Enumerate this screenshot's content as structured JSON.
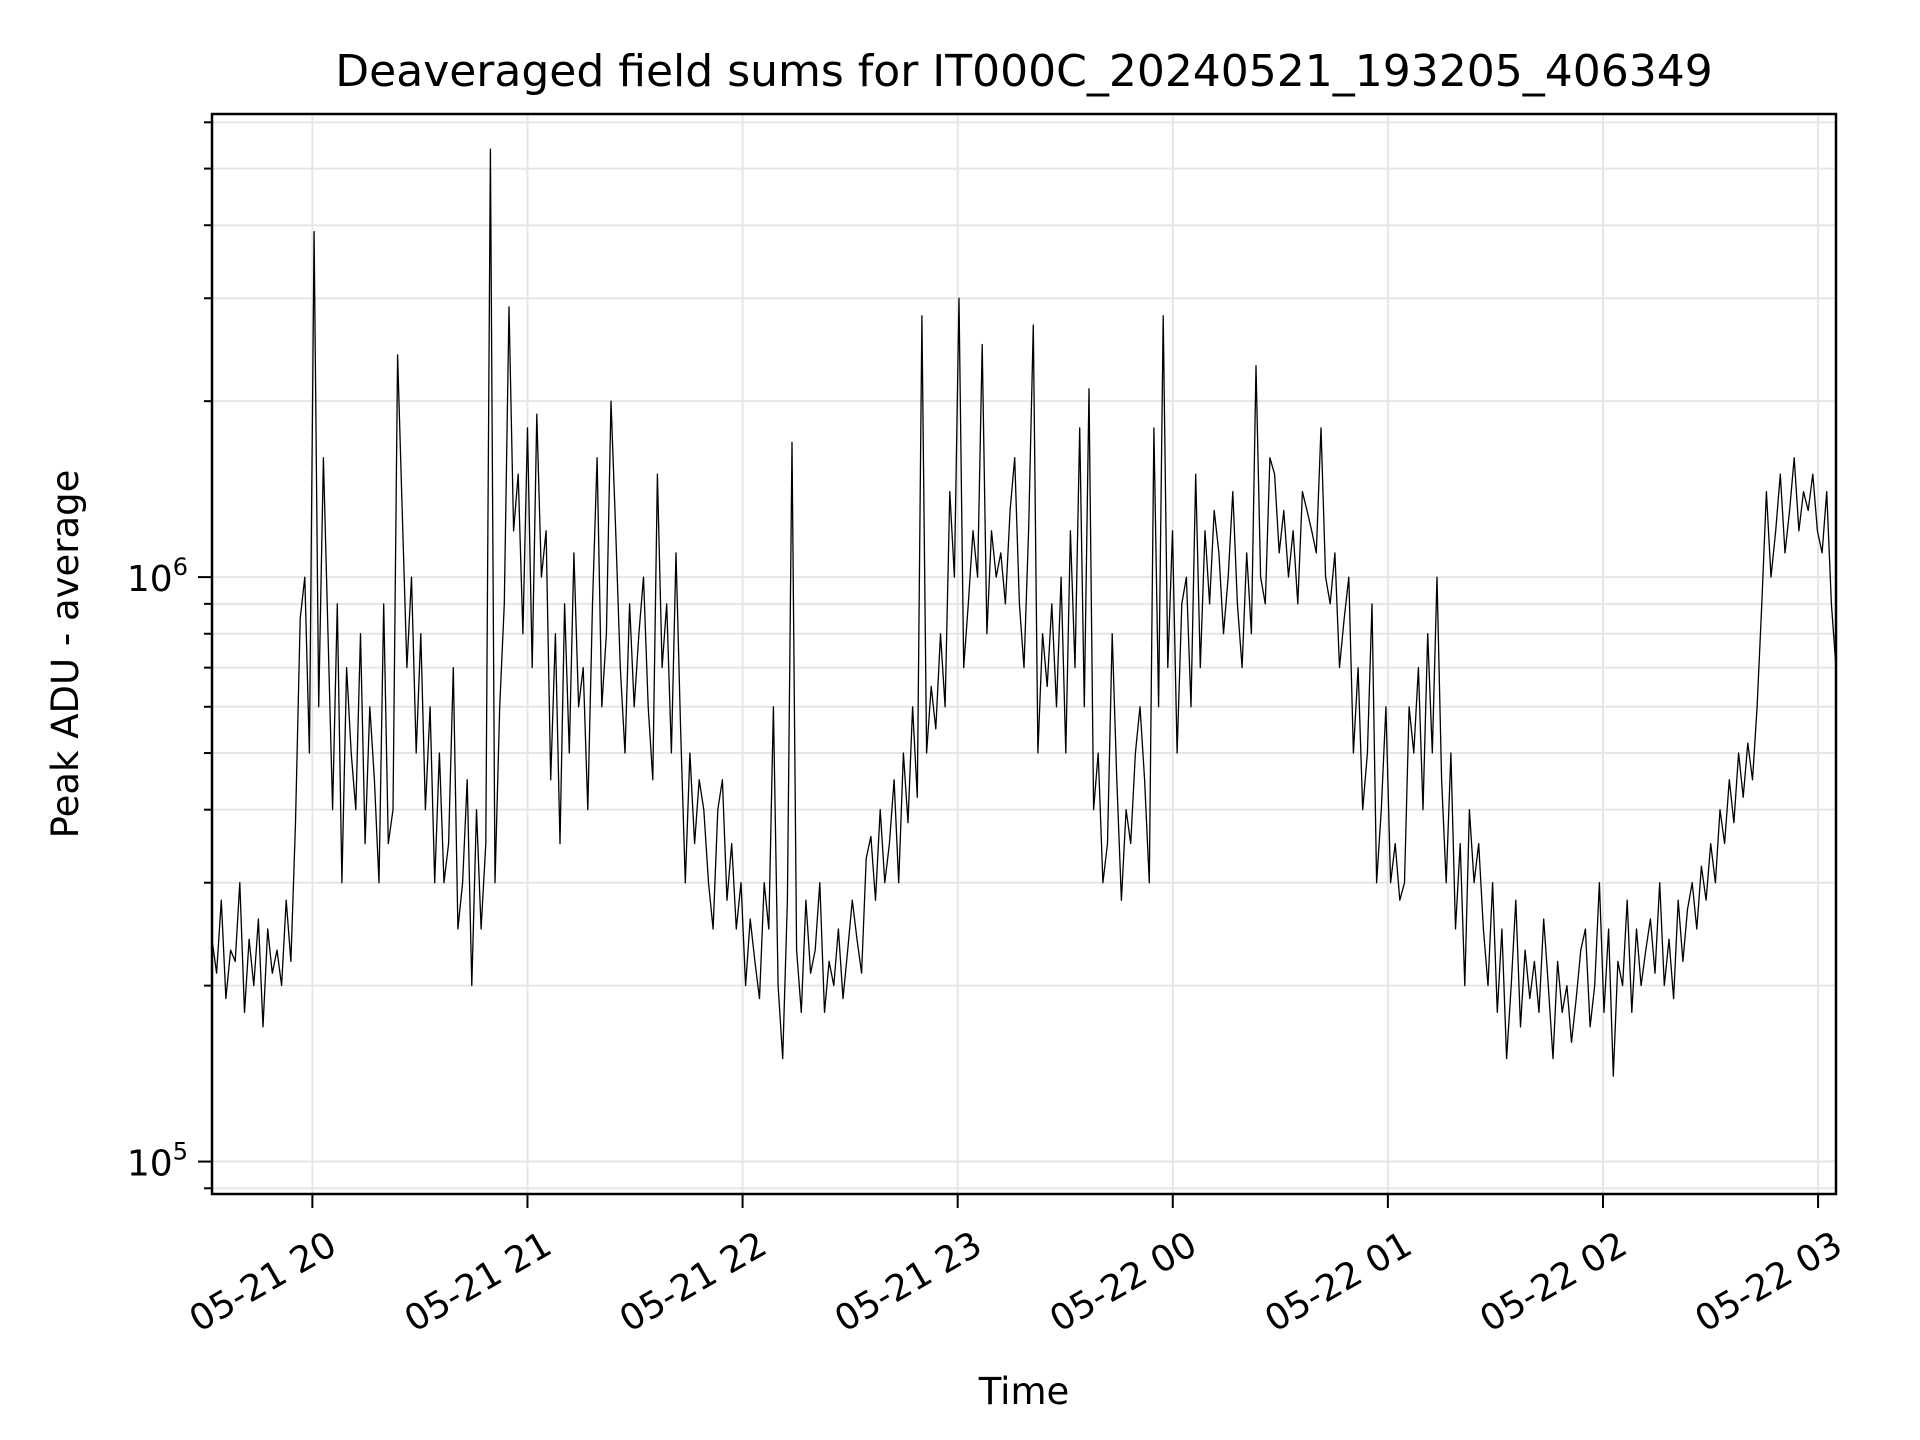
{
  "chart_data": {
    "type": "line",
    "title": "Deaveraged field sums for IT000C_20240521_193205_406349",
    "xlabel": "Time",
    "ylabel": "Peak ADU - average",
    "x_tick_labels": [
      "05-21 20",
      "05-21 21",
      "05-21 22",
      "05-21 23",
      "05-22 00",
      "05-22 01",
      "05-22 02",
      "05-22 03"
    ],
    "y_tick_labels": [
      {
        "base": "10",
        "exp": "5"
      },
      {
        "base": "10",
        "exp": "6"
      }
    ],
    "x_range": [
      "2024-05-21T19:32",
      "2024-05-22T03:05"
    ],
    "ylim": [
      88000,
      6200000
    ],
    "yscale": "log",
    "grid": true,
    "series_color": "#000000",
    "series": [
      {
        "x_start": "2024-05-21T19:32",
        "x_end": "2024-05-22T03:05",
        "values": [
          240000,
          210000,
          280000,
          190000,
          230000,
          220000,
          300000,
          180000,
          240000,
          200000,
          260000,
          170000,
          250000,
          210000,
          230000,
          200000,
          280000,
          220000,
          380000,
          850000,
          1000000,
          500000,
          3900000,
          600000,
          1600000,
          800000,
          400000,
          900000,
          300000,
          700000,
          500000,
          400000,
          800000,
          350000,
          600000,
          450000,
          300000,
          900000,
          350000,
          400000,
          2400000,
          1300000,
          700000,
          1000000,
          500000,
          800000,
          400000,
          600000,
          300000,
          500000,
          300000,
          350000,
          700000,
          250000,
          300000,
          450000,
          200000,
          400000,
          250000,
          350000,
          5400000,
          300000,
          600000,
          900000,
          2900000,
          1200000,
          1500000,
          800000,
          1800000,
          700000,
          1900000,
          1000000,
          1200000,
          450000,
          800000,
          350000,
          900000,
          500000,
          1100000,
          600000,
          700000,
          400000,
          900000,
          1600000,
          600000,
          800000,
          2000000,
          1200000,
          700000,
          500000,
          900000,
          600000,
          800000,
          1000000,
          600000,
          450000,
          1500000,
          700000,
          900000,
          500000,
          1100000,
          550000,
          300000,
          500000,
          350000,
          450000,
          400000,
          300000,
          250000,
          400000,
          450000,
          280000,
          350000,
          250000,
          300000,
          200000,
          260000,
          220000,
          190000,
          300000,
          250000,
          600000,
          200000,
          150000,
          280000,
          1700000,
          230000,
          180000,
          280000,
          210000,
          230000,
          300000,
          180000,
          220000,
          200000,
          250000,
          190000,
          230000,
          280000,
          240000,
          210000,
          330000,
          360000,
          280000,
          400000,
          300000,
          350000,
          450000,
          300000,
          500000,
          380000,
          600000,
          420000,
          2800000,
          500000,
          650000,
          550000,
          800000,
          600000,
          1400000,
          1000000,
          3000000,
          700000,
          900000,
          1200000,
          1000000,
          2500000,
          800000,
          1200000,
          1000000,
          1100000,
          900000,
          1300000,
          1600000,
          900000,
          700000,
          1200000,
          2700000,
          500000,
          800000,
          650000,
          900000,
          600000,
          1000000,
          500000,
          1200000,
          700000,
          1800000,
          600000,
          2100000,
          400000,
          500000,
          300000,
          350000,
          800000,
          450000,
          280000,
          400000,
          350000,
          500000,
          600000,
          450000,
          300000,
          1800000,
          600000,
          2800000,
          700000,
          1200000,
          500000,
          900000,
          1000000,
          600000,
          1500000,
          700000,
          1200000,
          900000,
          1300000,
          1100000,
          800000,
          1000000,
          1400000,
          900000,
          700000,
          1100000,
          800000,
          2300000,
          1000000,
          900000,
          1600000,
          1500000,
          1100000,
          1300000,
          1000000,
          1200000,
          900000,
          1400000,
          1300000,
          1200000,
          1100000,
          1800000,
          1000000,
          900000,
          1100000,
          700000,
          850000,
          1000000,
          500000,
          700000,
          400000,
          500000,
          900000,
          300000,
          400000,
          600000,
          300000,
          350000,
          280000,
          300000,
          600000,
          500000,
          700000,
          400000,
          800000,
          500000,
          1000000,
          450000,
          300000,
          500000,
          250000,
          350000,
          200000,
          400000,
          300000,
          350000,
          250000,
          200000,
          300000,
          180000,
          250000,
          150000,
          200000,
          280000,
          170000,
          230000,
          190000,
          220000,
          180000,
          260000,
          200000,
          150000,
          220000,
          180000,
          200000,
          160000,
          190000,
          230000,
          250000,
          170000,
          200000,
          300000,
          180000,
          250000,
          140000,
          220000,
          200000,
          280000,
          180000,
          250000,
          200000,
          230000,
          260000,
          210000,
          300000,
          200000,
          240000,
          190000,
          280000,
          220000,
          270000,
          300000,
          250000,
          320000,
          280000,
          350000,
          300000,
          400000,
          350000,
          450000,
          380000,
          500000,
          420000,
          520000,
          450000,
          600000,
          900000,
          1400000,
          1000000,
          1200000,
          1500000,
          1100000,
          1300000,
          1600000,
          1200000,
          1400000,
          1300000,
          1500000,
          1200000,
          1100000,
          1400000,
          900000,
          700000
        ]
      }
    ]
  }
}
